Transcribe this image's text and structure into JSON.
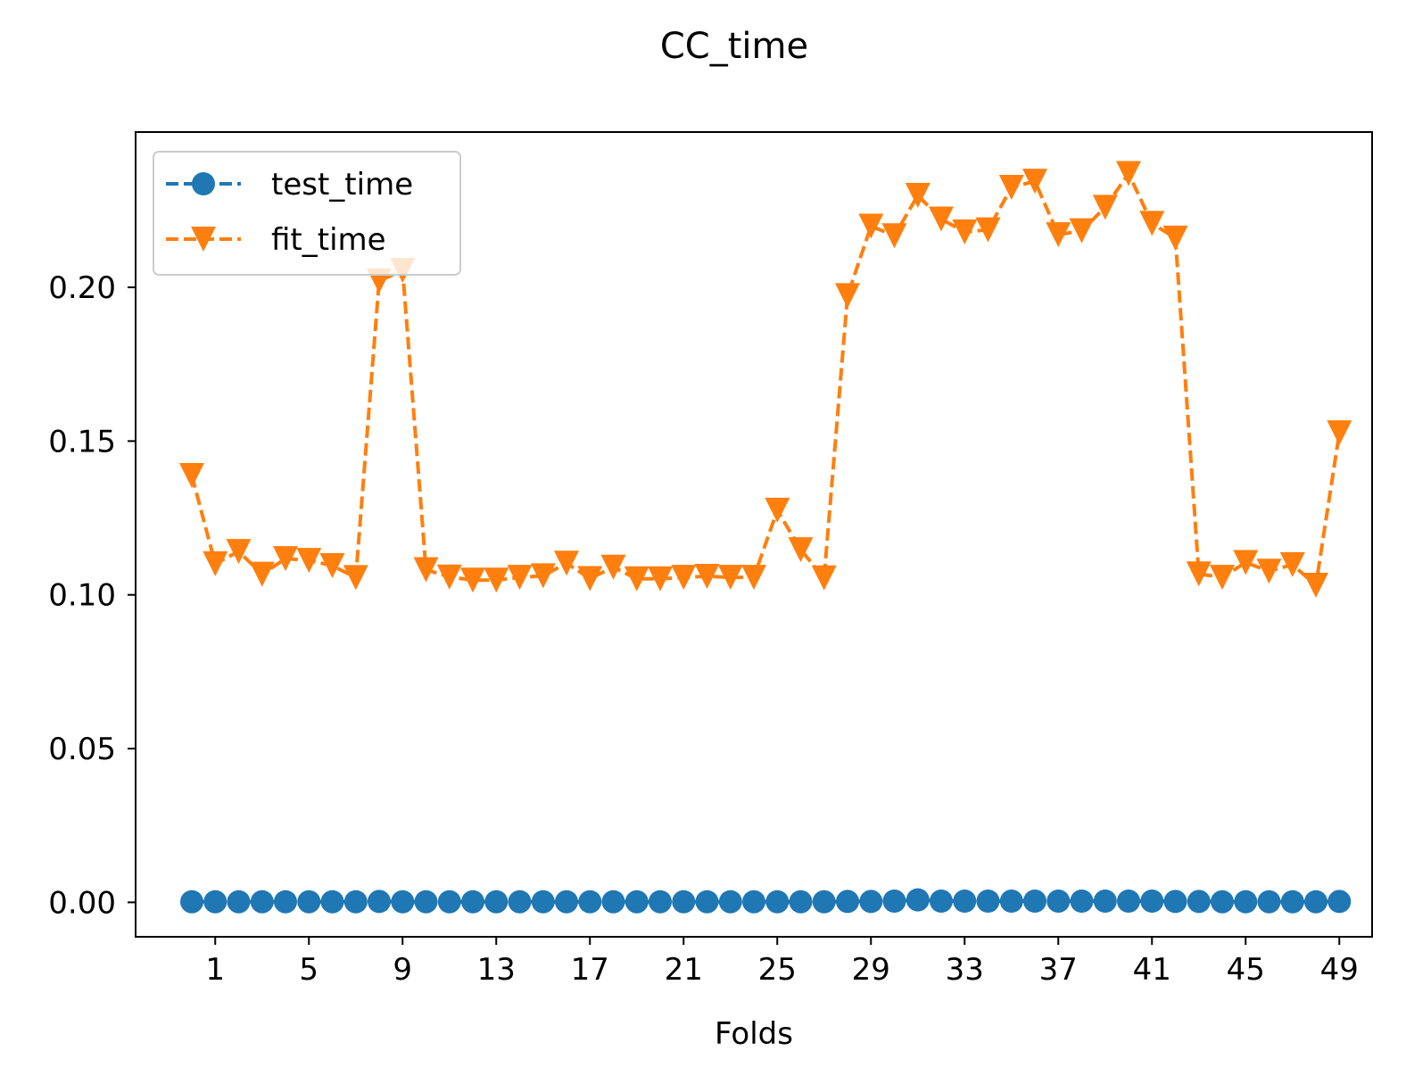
{
  "chart_data": {
    "type": "line",
    "title": "CC_time",
    "xlabel": "Folds",
    "ylabel": "",
    "x": [
      0,
      1,
      2,
      3,
      4,
      5,
      6,
      7,
      8,
      9,
      10,
      11,
      12,
      13,
      14,
      15,
      16,
      17,
      18,
      19,
      20,
      21,
      22,
      23,
      24,
      25,
      26,
      27,
      28,
      29,
      30,
      31,
      32,
      33,
      34,
      35,
      36,
      37,
      38,
      39,
      40,
      41,
      42,
      43,
      44,
      45,
      46,
      47,
      48,
      49
    ],
    "xticks": [
      1,
      5,
      9,
      13,
      17,
      21,
      25,
      29,
      33,
      37,
      41,
      45,
      49
    ],
    "xlim": [
      -2.4,
      50.4
    ],
    "yticks": [
      0.0,
      0.05,
      0.1,
      0.15,
      0.2
    ],
    "ytick_labels": [
      "0.00",
      "0.05",
      "0.10",
      "0.15",
      "0.20"
    ],
    "ylim": [
      -0.0112,
      0.2505
    ],
    "grid": false,
    "legend_position": "upper left",
    "series": [
      {
        "name": "test_time",
        "color": "#1f77b4",
        "marker": "circle",
        "values": [
          0.0002,
          0.0002,
          0.0002,
          0.0002,
          0.0002,
          0.0002,
          0.0002,
          0.0002,
          0.0003,
          0.0002,
          0.0002,
          0.0002,
          0.0002,
          0.0002,
          0.0002,
          0.0002,
          0.0002,
          0.0002,
          0.0002,
          0.0002,
          0.0002,
          0.0002,
          0.0002,
          0.0002,
          0.0002,
          0.0002,
          0.0002,
          0.0002,
          0.0003,
          0.0003,
          0.0004,
          0.0008,
          0.0004,
          0.0004,
          0.0004,
          0.0004,
          0.0004,
          0.0004,
          0.0004,
          0.0004,
          0.0004,
          0.0004,
          0.0003,
          0.0003,
          0.0002,
          0.0002,
          0.0002,
          0.0002,
          0.0002,
          0.0003
        ]
      },
      {
        "name": "fit_time",
        "color": "#ff7f0e",
        "marker": "triangle-down",
        "values": [
          0.1388,
          0.1101,
          0.1141,
          0.1067,
          0.1118,
          0.1112,
          0.1095,
          0.1056,
          0.2021,
          0.2055,
          0.1082,
          0.1058,
          0.1048,
          0.1048,
          0.1057,
          0.1062,
          0.1103,
          0.1053,
          0.109,
          0.1052,
          0.1052,
          0.1057,
          0.106,
          0.1057,
          0.1057,
          0.1275,
          0.1147,
          0.1055,
          0.1973,
          0.2199,
          0.2168,
          0.2299,
          0.2222,
          0.218,
          0.2187,
          0.2325,
          0.2345,
          0.2171,
          0.2184,
          0.226,
          0.237,
          0.2208,
          0.216,
          0.1068,
          0.1057,
          0.1105,
          0.1077,
          0.1098,
          0.1031,
          0.1527
        ]
      }
    ]
  }
}
